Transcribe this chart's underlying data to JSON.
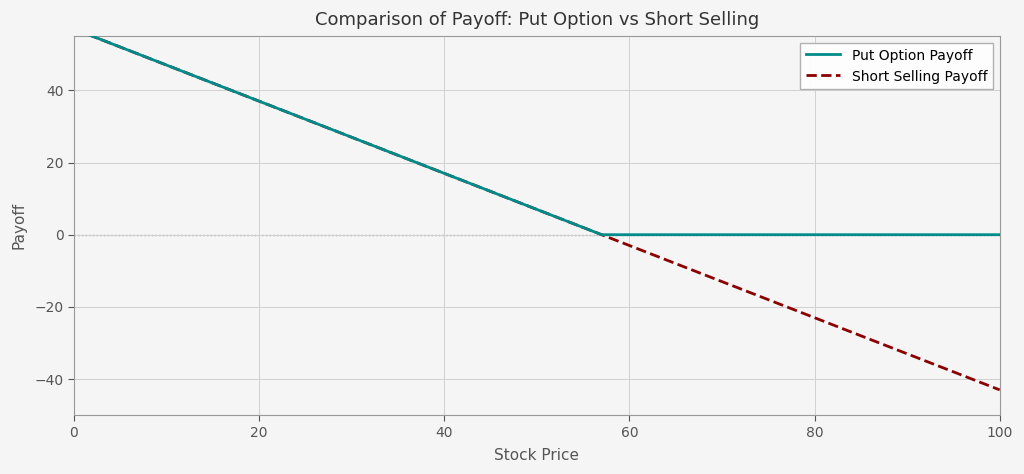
{
  "title": "Comparison of Payoff: Put Option vs Short Selling",
  "xlabel": "Stock Price",
  "ylabel": "Payoff",
  "strike_price": 57,
  "short_sell_price": 57,
  "x_min": 0,
  "x_max": 100,
  "ylim": [
    -50,
    55
  ],
  "put_color": "#008B8B",
  "short_color": "#8B0000",
  "put_label": "Put Option Payoff",
  "short_label": "Short Selling Payoff",
  "grid_color": "#d0d0d0",
  "zero_line_color": "#888888",
  "background_color": "#f5f5f5",
  "title_fontsize": 13,
  "label_fontsize": 11,
  "tick_color": "#555555",
  "spine_color": "#999999",
  "figsize": [
    10.24,
    4.74
  ],
  "dpi": 100
}
